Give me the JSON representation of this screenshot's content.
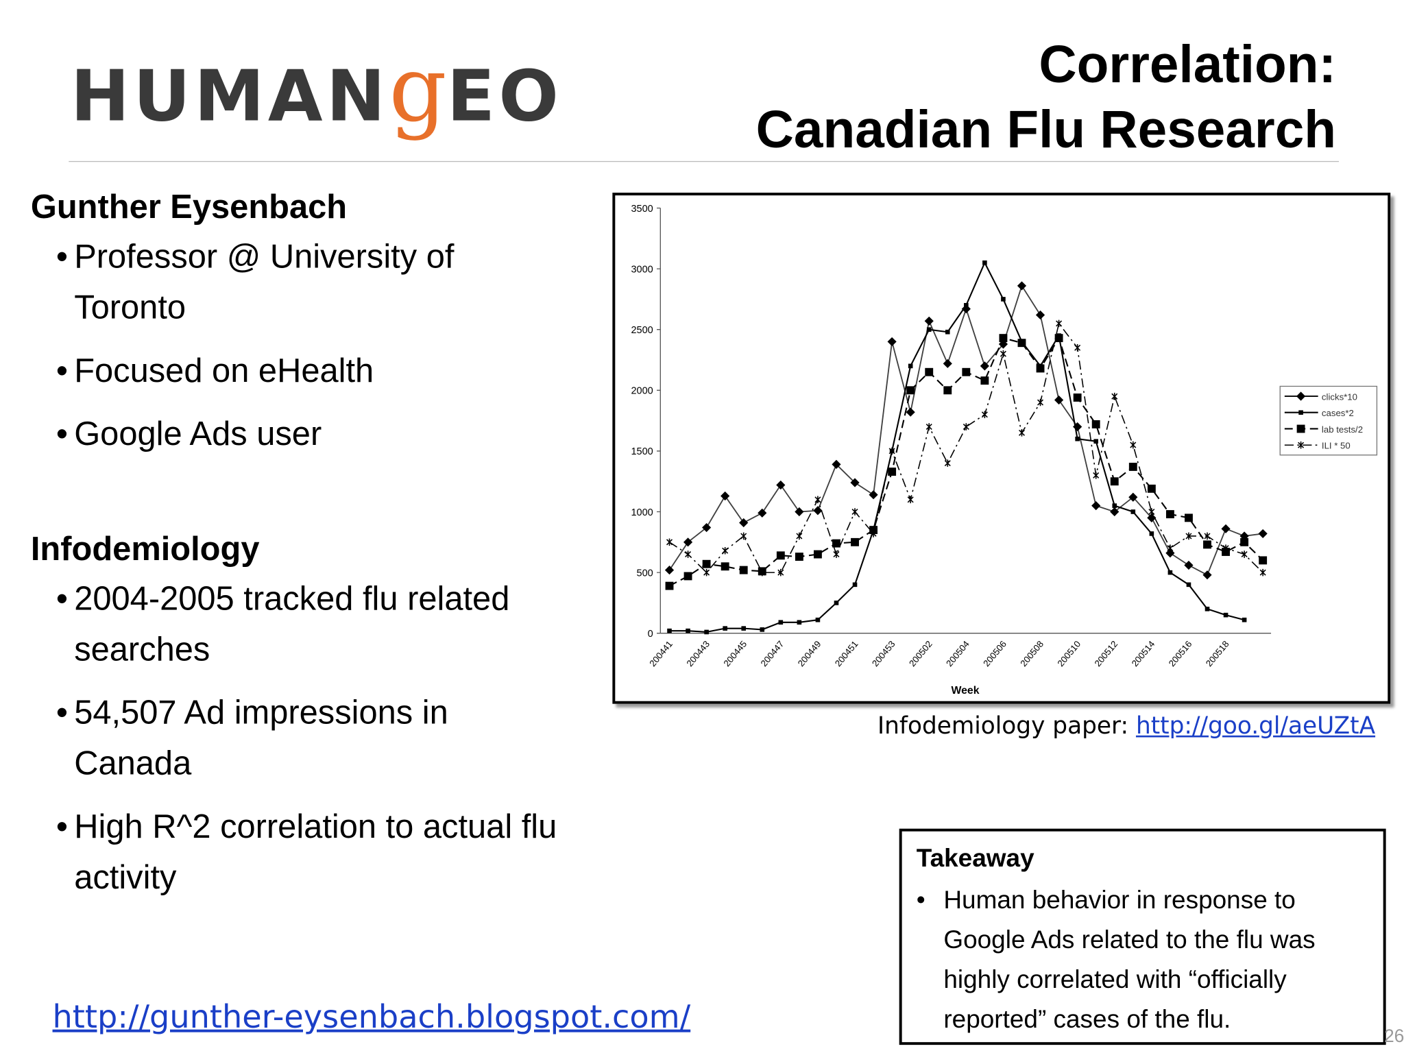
{
  "header": {
    "logo": [
      "HUMAN",
      "g",
      "EO"
    ],
    "title": [
      "Correlation:",
      "Canadian Flu Research"
    ]
  },
  "sections": [
    {
      "heading": "Gunther Eysenbach",
      "bullets": [
        "Professor @ University of Toronto",
        "Focused on eHealth",
        "Google Ads user"
      ]
    },
    {
      "heading": "Infodemiology",
      "bullets": [
        "2004-2005 tracked flu related searches",
        "54,507 Ad impressions in Canada",
        "High R^2 correlation to actual flu activity"
      ]
    }
  ],
  "caption": {
    "text": "Infodemiology paper: ",
    "link": "http://goo.gl/aeUZtA"
  },
  "takeaway": {
    "heading": "Takeaway",
    "text": "Human behavior in response to Google Ads related to the flu was highly correlated with “officially reported” cases of the flu."
  },
  "footer": {
    "link": "http://gunther-eysenbach.blogspot.com/",
    "page": "26"
  },
  "chart_data": {
    "type": "line",
    "x_label": "Week",
    "categories": [
      "200441",
      null,
      "200443",
      null,
      "200445",
      null,
      "200447",
      null,
      "200449",
      null,
      "200451",
      null,
      "200453",
      null,
      "200502",
      null,
      "200504",
      null,
      "200506",
      null,
      "200508",
      null,
      "200510",
      null,
      "200512",
      null,
      "200514",
      null,
      "200516",
      null,
      "200518",
      null,
      null
    ],
    "ylim": [
      0,
      3500
    ],
    "yticks": [
      0,
      500,
      1000,
      1500,
      2000,
      2500,
      3000,
      3500
    ],
    "series": [
      {
        "name": "clicks*10",
        "color": "#000000",
        "values": [
          520,
          750,
          870,
          1130,
          910,
          990,
          1220,
          1000,
          1010,
          1390,
          1240,
          1140,
          2400,
          1820,
          2570,
          2220,
          2670,
          2200,
          2380,
          2860,
          2620,
          1920,
          1700,
          1050,
          1000,
          1120,
          950,
          660,
          560,
          480,
          860,
          800,
          820
        ]
      },
      {
        "name": "cases*2",
        "color": "#000000",
        "values": [
          20,
          20,
          10,
          40,
          40,
          30,
          90,
          90,
          110,
          250,
          400,
          850,
          1500,
          2200,
          2500,
          2480,
          2700,
          3050,
          2750,
          2400,
          2200,
          2450,
          1600,
          1580,
          1050,
          1000,
          820,
          500,
          400,
          200,
          150,
          110,
          null
        ]
      },
      {
        "name": "lab tests/2",
        "color": "#000000",
        "values": [
          390,
          470,
          570,
          550,
          520,
          510,
          640,
          630,
          650,
          740,
          750,
          850,
          1330,
          2000,
          2150,
          2000,
          2150,
          2080,
          2430,
          2390,
          2180,
          2430,
          1940,
          1720,
          1250,
          1370,
          1190,
          980,
          950,
          730,
          670,
          750,
          600
        ]
      },
      {
        "name": "ILI * 50",
        "color": "#000000",
        "values": [
          750,
          650,
          500,
          680,
          800,
          500,
          500,
          800,
          1100,
          650,
          1000,
          820,
          1500,
          1100,
          1700,
          1400,
          1700,
          1800,
          2300,
          1650,
          1900,
          2550,
          2350,
          1300,
          1950,
          1550,
          1000,
          700,
          800,
          800,
          700,
          650,
          500
        ]
      }
    ],
    "legend": "right"
  }
}
